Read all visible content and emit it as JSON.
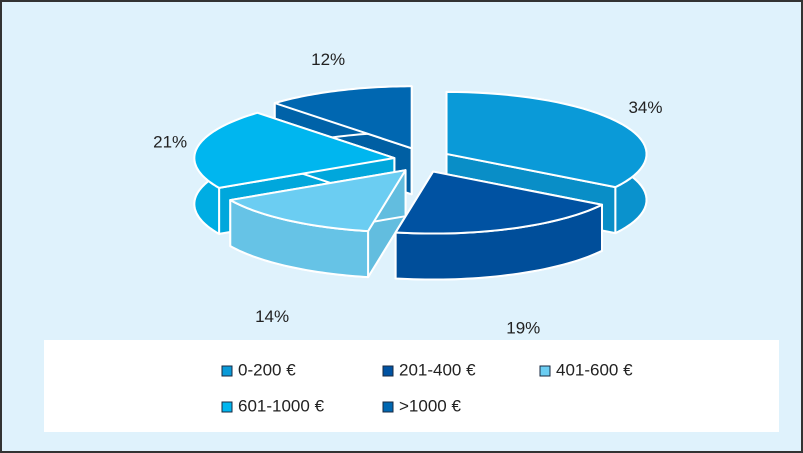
{
  "chart_data": {
    "type": "pie3d",
    "categories": [
      "0-200 €",
      "201-400 €",
      "401-600 €",
      "601-1000 €",
      ">1000 €"
    ],
    "values": [
      34,
      19,
      14,
      21,
      12
    ],
    "value_labels": [
      "34%",
      "19%",
      "14%",
      "21%",
      "12%"
    ],
    "colors": [
      "#0a9ad8",
      "#0052a2",
      "#6bcdf2",
      "#00b6ef",
      "#0067b1"
    ],
    "legend": "bottom"
  }
}
